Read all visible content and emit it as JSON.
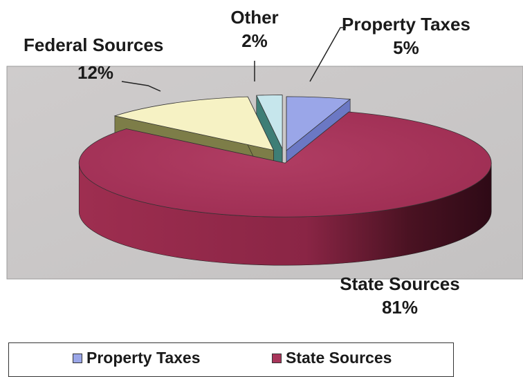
{
  "chart_data": {
    "type": "pie",
    "style": "3d-exploded",
    "slices": [
      {
        "label": "Property Taxes",
        "value": 5,
        "value_label": "5%",
        "color": "#9aa6e8"
      },
      {
        "label": "State Sources",
        "value": 81,
        "value_label": "81%",
        "color": "#a8355a"
      },
      {
        "label": "Federal Sources",
        "value": 12,
        "value_label": "12%",
        "color": "#f6f2c4"
      },
      {
        "label": "Other",
        "value": 2,
        "value_label": "2%",
        "color": "#c6e6ec"
      }
    ],
    "legend": {
      "placement": "bottom",
      "entries": [
        "Property Taxes",
        "State Sources"
      ]
    },
    "plot_area_color": "#c8c6c6"
  }
}
